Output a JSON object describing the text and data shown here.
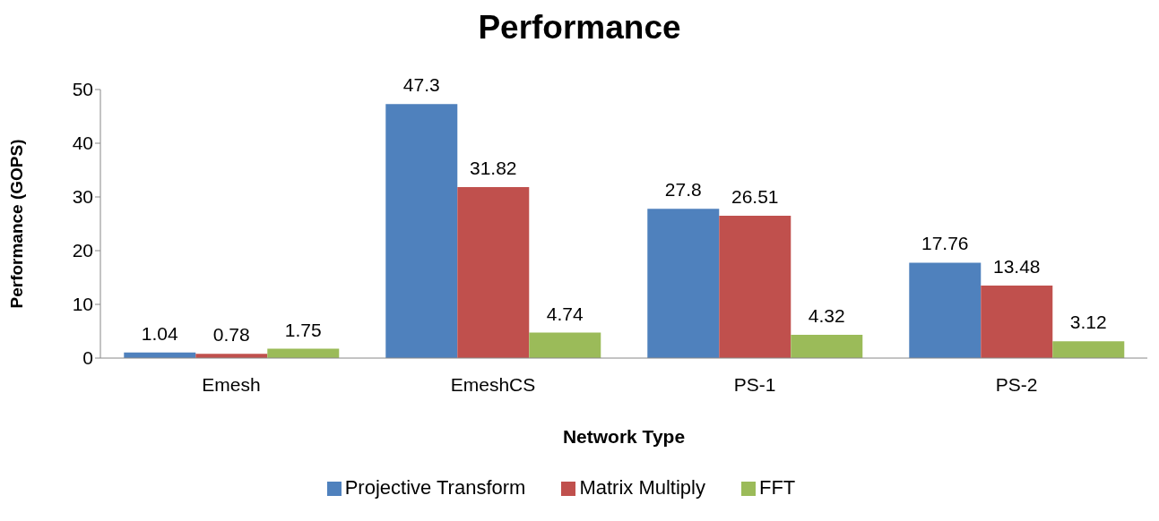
{
  "chart_data": {
    "type": "bar",
    "title": "Performance",
    "xlabel": "Network Type",
    "ylabel": "Performance (GOPS)",
    "categories": [
      "Emesh",
      "EmeshCS",
      "PS-1",
      "PS-2"
    ],
    "series": [
      {
        "name": "Projective Transform",
        "color": "#4f81bd",
        "values": [
          1.04,
          47.3,
          27.8,
          17.76
        ]
      },
      {
        "name": "Matrix Multiply",
        "color": "#c0504d",
        "values": [
          0.78,
          31.82,
          26.51,
          13.48
        ]
      },
      {
        "name": "FFT",
        "color": "#9bbb59",
        "values": [
          1.75,
          4.74,
          4.32,
          3.12
        ]
      }
    ],
    "ylim": [
      0,
      50
    ],
    "yticks": [
      0,
      10,
      20,
      30,
      40,
      50
    ],
    "grid": false,
    "legend": "bottom",
    "data_labels": true
  }
}
